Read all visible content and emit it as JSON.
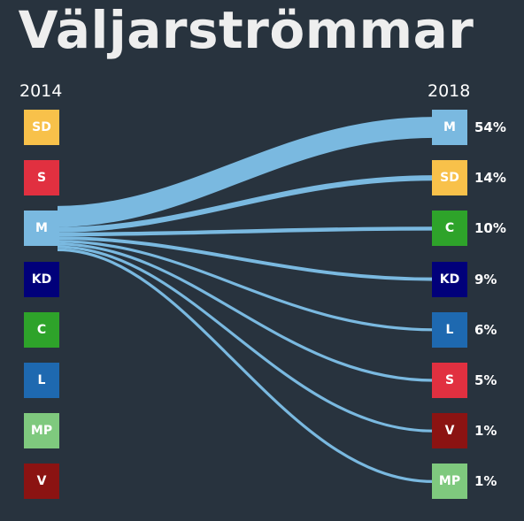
{
  "title": "Väljarströmmar",
  "year_left": "2014",
  "year_right": "2018",
  "flow_color": "#7ab9e0",
  "parties": {
    "SD": "#f8c14a",
    "S": "#e13040",
    "M": "#7ab9e0",
    "KD": "#01007a",
    "C": "#2ea32a",
    "L": "#1e69b0",
    "MP": "#7fc97e",
    "V": "#8b1312"
  },
  "left_parties": [
    "SD",
    "S",
    "M",
    "KD",
    "C",
    "L",
    "MP",
    "V"
  ],
  "source_party": "M",
  "chart_data": {
    "type": "sankey",
    "title": "Väljarströmmar",
    "source_year": "2014",
    "target_year": "2018",
    "source": "M",
    "flows": [
      {
        "to": "M",
        "value": 54,
        "label": "54%"
      },
      {
        "to": "SD",
        "value": 14,
        "label": "14%"
      },
      {
        "to": "C",
        "value": 10,
        "label": "10%"
      },
      {
        "to": "KD",
        "value": 9,
        "label": "9%"
      },
      {
        "to": "L",
        "value": 6,
        "label": "6%"
      },
      {
        "to": "S",
        "value": 5,
        "label": "5%"
      },
      {
        "to": "V",
        "value": 1,
        "label": "1%"
      },
      {
        "to": "MP",
        "value": 1,
        "label": "1%"
      }
    ]
  }
}
